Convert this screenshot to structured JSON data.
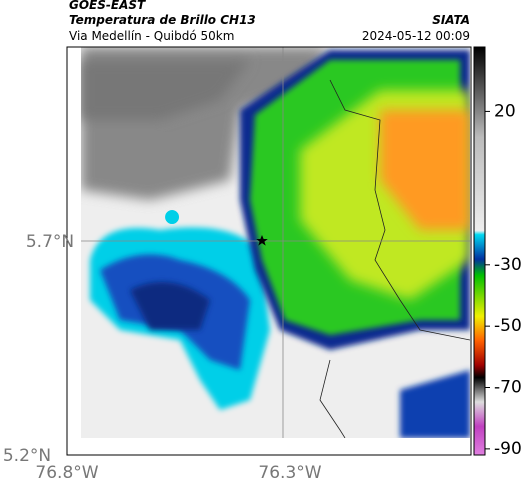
{
  "header": {
    "satellite": "GOES-EAST",
    "product": "Temperatura de Brillo CH13",
    "region": "Via Medellín - Quibdó 50km",
    "source": "SIATA",
    "datetime": "2024-05-12 00:09"
  },
  "map": {
    "lat_labels": [
      "5.7°N",
      "5.2°N"
    ],
    "lon_labels": [
      "76.8°W",
      "76.3°W"
    ]
  },
  "colorbar": {
    "range": [
      -92,
      41
    ],
    "ticks": [
      20,
      -30,
      -50,
      -70,
      -90
    ]
  }
}
